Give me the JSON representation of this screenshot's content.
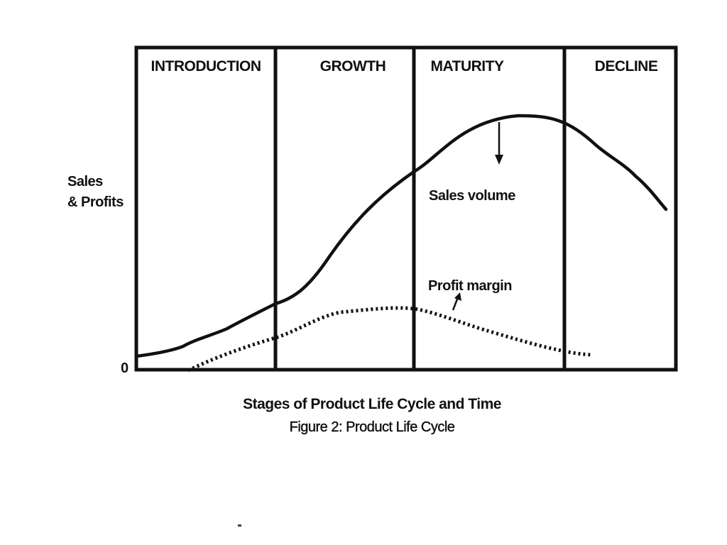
{
  "stages": [
    {
      "label": "INTRODUCTION"
    },
    {
      "label": "GROWTH"
    },
    {
      "label": "MATURITY"
    },
    {
      "label": "DECLINE"
    }
  ],
  "y_axis": {
    "label_line1": "Sales",
    "label_line2": "& Profits",
    "origin_label": "0"
  },
  "curves": {
    "sales": {
      "label": "Sales volume"
    },
    "profit": {
      "label": "Profit margin"
    }
  },
  "caption": {
    "line1": "Stages of Product Life Cycle and Time",
    "line2": "Figure 2: Product Life Cycle"
  },
  "colors": {
    "ink": "#111111",
    "background": "#ffffff",
    "stray_mark": "#2a3f9a"
  }
}
